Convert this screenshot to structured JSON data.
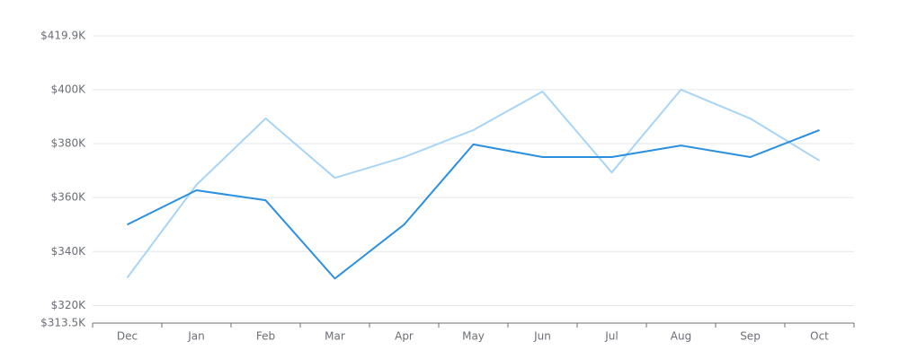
{
  "chart_data": {
    "type": "line",
    "categories": [
      "Dec",
      "Jan",
      "Feb",
      "Mar",
      "Apr",
      "May",
      "Jun",
      "Jul",
      "Aug",
      "Sep",
      "Oct"
    ],
    "series": [
      {
        "color": "#a8d5f5",
        "values": [
          330300,
          364700,
          389300,
          367300,
          375000,
          385000,
          399300,
          369300,
          400000,
          389300,
          373700
        ]
      },
      {
        "color": "#2b8fe0",
        "values": [
          350000,
          362700,
          359000,
          330000,
          350000,
          379700,
          375000,
          375000,
          379300,
          375000,
          385000
        ]
      }
    ],
    "ylim": [
      313500,
      419900
    ],
    "yticks": [
      {
        "value": 313500,
        "label": "$313.5K"
      },
      {
        "value": 320000,
        "label": "$320K"
      },
      {
        "value": 340000,
        "label": "$340K"
      },
      {
        "value": 360000,
        "label": "$360K"
      },
      {
        "value": 380000,
        "label": "$380K"
      },
      {
        "value": 400000,
        "label": "$400K"
      },
      {
        "value": 419900,
        "label": "$419.9K"
      }
    ],
    "grid": true
  }
}
